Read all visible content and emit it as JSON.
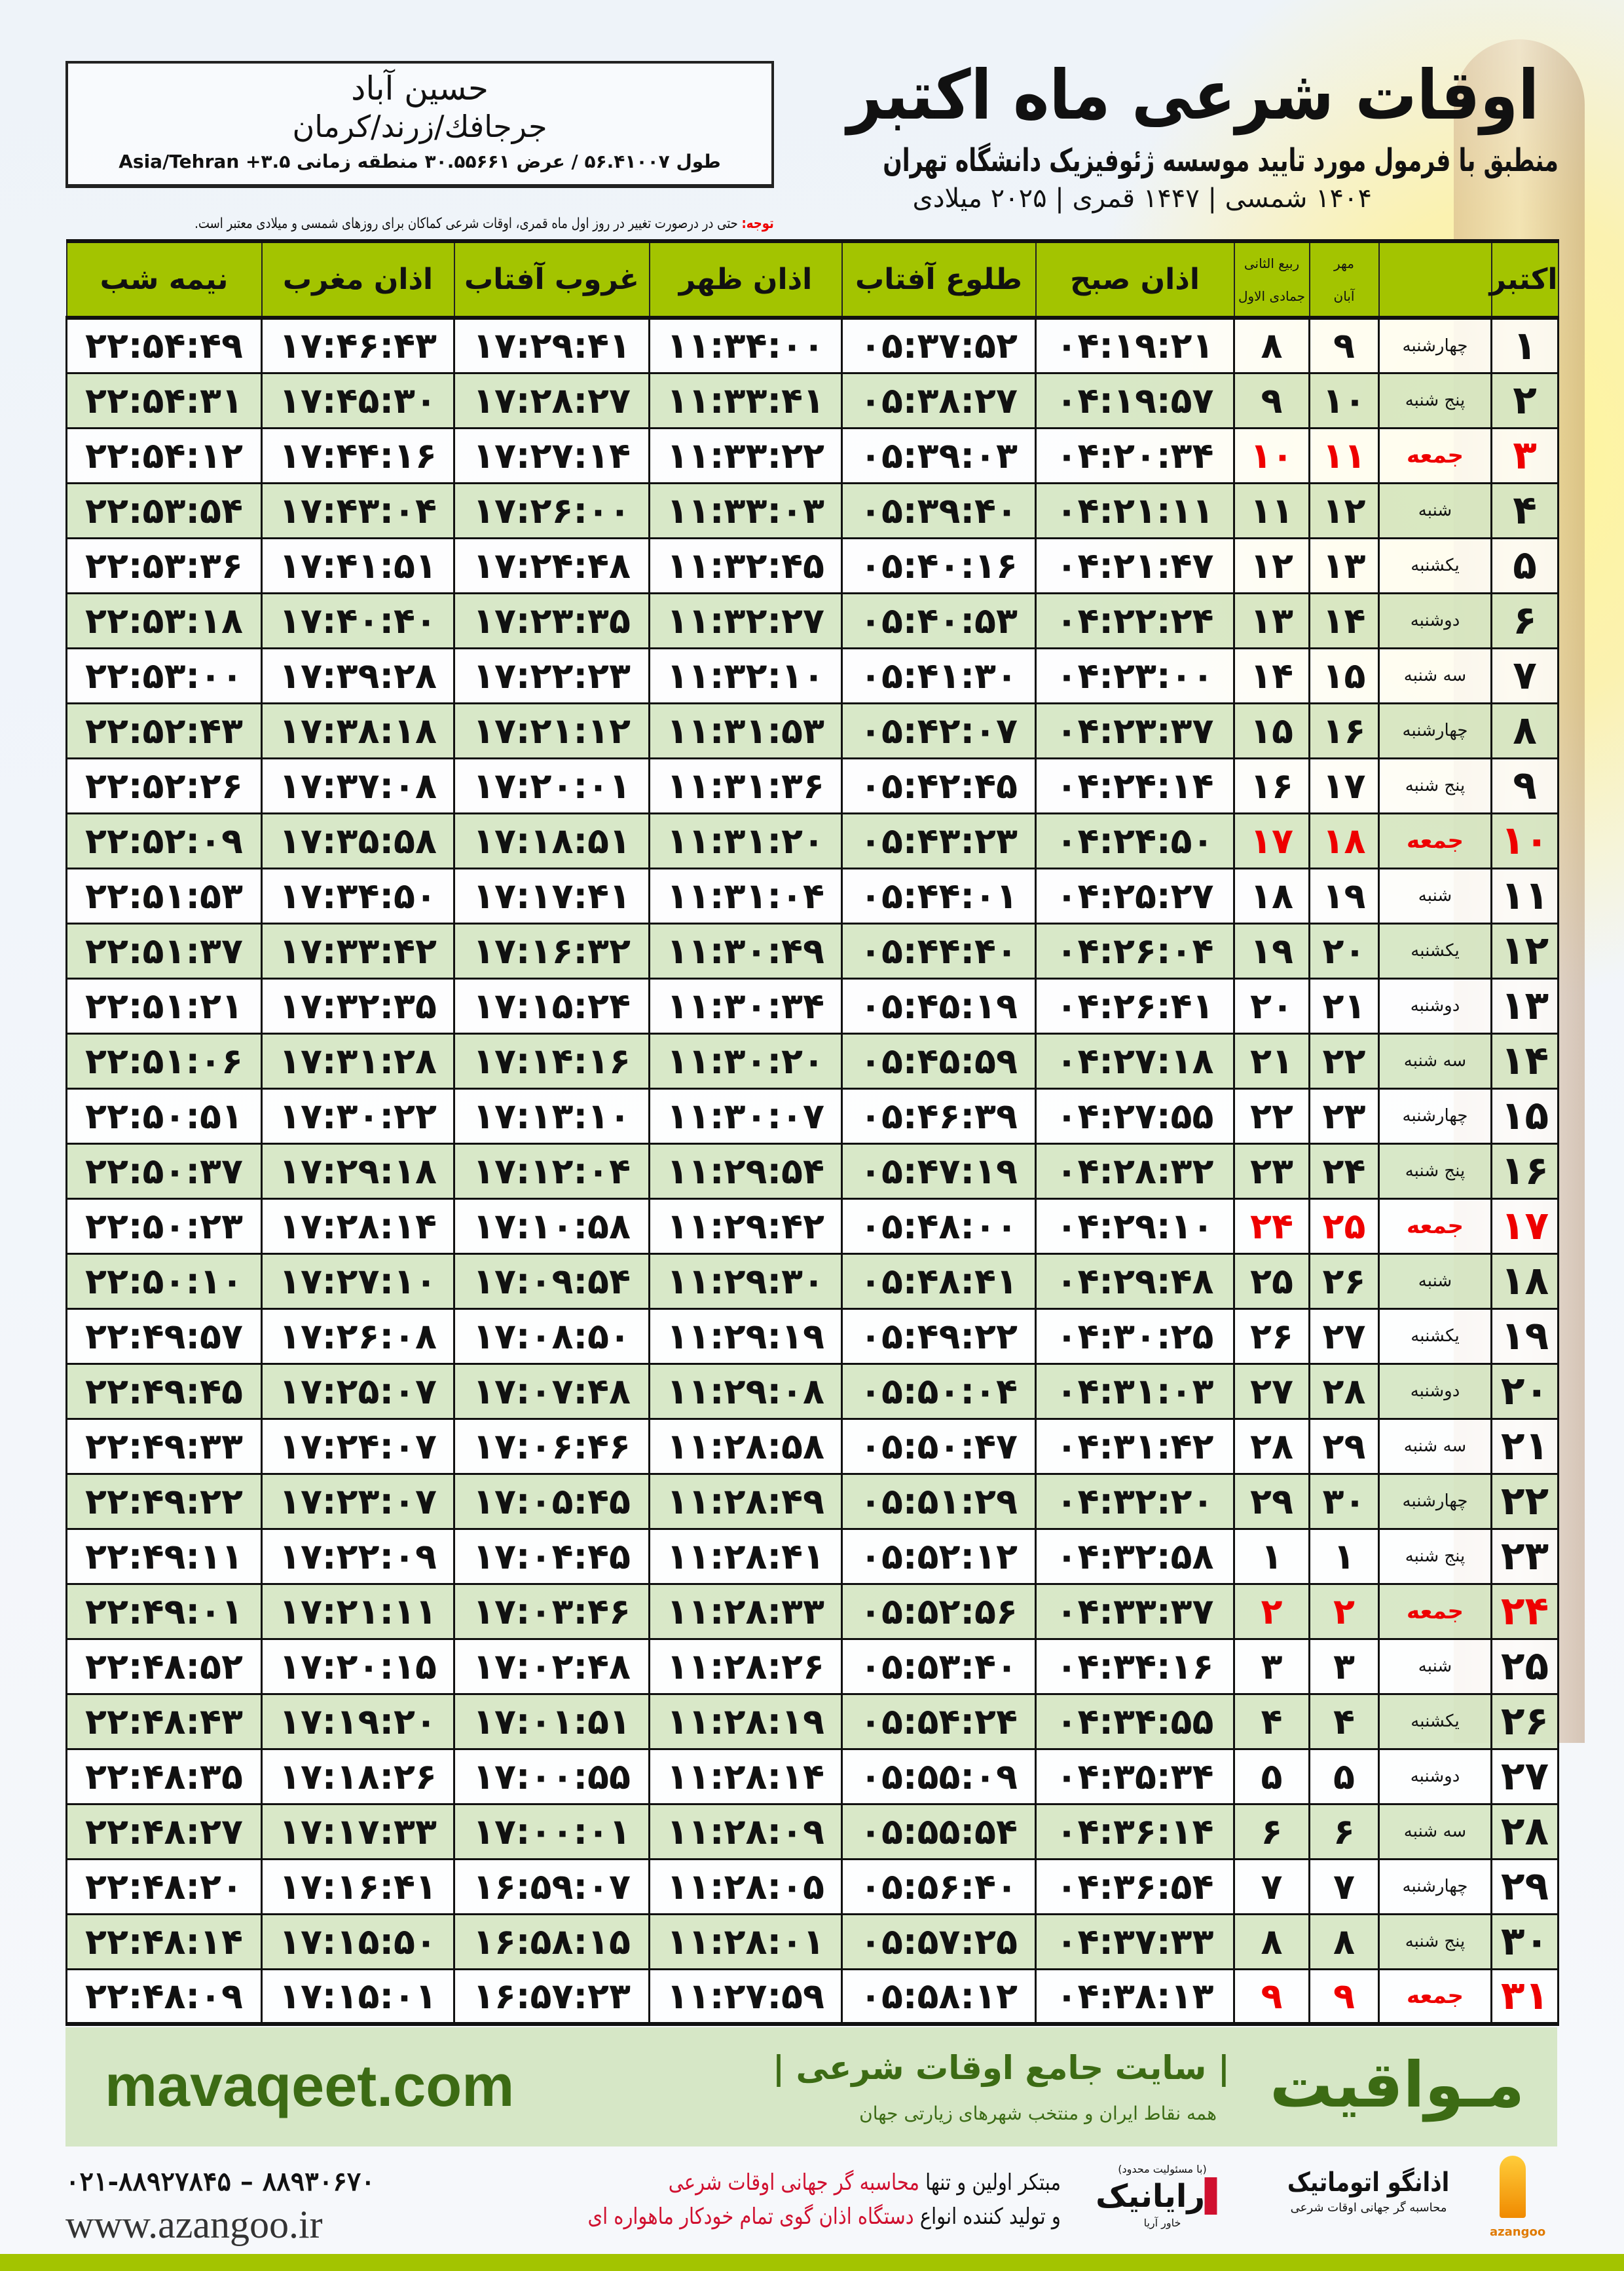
{
  "header": {
    "title": "اوقات شرعی ماه اکتبر",
    "subtitle": "منطبق با فرمول مورد تایید موسسه ژئوفیزیک دانشگاه تهران",
    "years": "۱۴۰۴ شمسی | ۱۴۴۷ قمری | ۲۰۲۵ میلادی"
  },
  "location": {
    "name": "حسین آباد",
    "region": "جرجافك/زرند/کرمان",
    "coords": "طول ۵۶.۴۱۰۰۷ / عرض ۳۰.۵۵۶۶۱ منطقه زمانی ۳.۵+ Asia/Tehran"
  },
  "note": {
    "label": "توجه:",
    "text": " حتی در درصورت تغییر در روز اول ماه قمری، اوقات شرعی کماکان برای روزهای شمسی و میلادی معتبر است."
  },
  "columns": {
    "day": "اکتبر",
    "solar_top": "مهر",
    "solar_bottom": "آبان",
    "lunar_top": "ربیع الثانی",
    "lunar_bottom": "جمادی الاول",
    "fajr": "اذان صبح",
    "sunrise": "طلوع آفتاب",
    "dhuhr": "اذان ظهر",
    "sunset": "غروب آفتاب",
    "maghrib": "اذان مغرب",
    "midnight": "نیمه شب"
  },
  "rows": [
    [
      "۱",
      "چهارشنبه",
      "۹",
      "۸",
      "۰۴:۱۹:۲۱",
      "۰۵:۳۷:۵۲",
      "۱۱:۳۴:۰۰",
      "۱۷:۲۹:۴۱",
      "۱۷:۴۶:۴۳",
      "۲۲:۵۴:۴۹"
    ],
    [
      "۲",
      "پنج شنبه",
      "۱۰",
      "۹",
      "۰۴:۱۹:۵۷",
      "۰۵:۳۸:۲۷",
      "۱۱:۳۳:۴۱",
      "۱۷:۲۸:۲۷",
      "۱۷:۴۵:۳۰",
      "۲۲:۵۴:۳۱"
    ],
    [
      "۳",
      "جمعه",
      "۱۱",
      "۱۰",
      "۰۴:۲۰:۳۴",
      "۰۵:۳۹:۰۳",
      "۱۱:۳۳:۲۲",
      "۱۷:۲۷:۱۴",
      "۱۷:۴۴:۱۶",
      "۲۲:۵۴:۱۲"
    ],
    [
      "۴",
      "شنبه",
      "۱۲",
      "۱۱",
      "۰۴:۲۱:۱۱",
      "۰۵:۳۹:۴۰",
      "۱۱:۳۳:۰۳",
      "۱۷:۲۶:۰۰",
      "۱۷:۴۳:۰۴",
      "۲۲:۵۳:۵۴"
    ],
    [
      "۵",
      "یکشنبه",
      "۱۳",
      "۱۲",
      "۰۴:۲۱:۴۷",
      "۰۵:۴۰:۱۶",
      "۱۱:۳۲:۴۵",
      "۱۷:۲۴:۴۸",
      "۱۷:۴۱:۵۱",
      "۲۲:۵۳:۳۶"
    ],
    [
      "۶",
      "دوشنبه",
      "۱۴",
      "۱۳",
      "۰۴:۲۲:۲۴",
      "۰۵:۴۰:۵۳",
      "۱۱:۳۲:۲۷",
      "۱۷:۲۳:۳۵",
      "۱۷:۴۰:۴۰",
      "۲۲:۵۳:۱۸"
    ],
    [
      "۷",
      "سه شنبه",
      "۱۵",
      "۱۴",
      "۰۴:۲۳:۰۰",
      "۰۵:۴۱:۳۰",
      "۱۱:۳۲:۱۰",
      "۱۷:۲۲:۲۳",
      "۱۷:۳۹:۲۸",
      "۲۲:۵۳:۰۰"
    ],
    [
      "۸",
      "چهارشنبه",
      "۱۶",
      "۱۵",
      "۰۴:۲۳:۳۷",
      "۰۵:۴۲:۰۷",
      "۱۱:۳۱:۵۳",
      "۱۷:۲۱:۱۲",
      "۱۷:۳۸:۱۸",
      "۲۲:۵۲:۴۳"
    ],
    [
      "۹",
      "پنج شنبه",
      "۱۷",
      "۱۶",
      "۰۴:۲۴:۱۴",
      "۰۵:۴۲:۴۵",
      "۱۱:۳۱:۳۶",
      "۱۷:۲۰:۰۱",
      "۱۷:۳۷:۰۸",
      "۲۲:۵۲:۲۶"
    ],
    [
      "۱۰",
      "جمعه",
      "۱۸",
      "۱۷",
      "۰۴:۲۴:۵۰",
      "۰۵:۴۳:۲۳",
      "۱۱:۳۱:۲۰",
      "۱۷:۱۸:۵۱",
      "۱۷:۳۵:۵۸",
      "۲۲:۵۲:۰۹"
    ],
    [
      "۱۱",
      "شنبه",
      "۱۹",
      "۱۸",
      "۰۴:۲۵:۲۷",
      "۰۵:۴۴:۰۱",
      "۱۱:۳۱:۰۴",
      "۱۷:۱۷:۴۱",
      "۱۷:۳۴:۵۰",
      "۲۲:۵۱:۵۳"
    ],
    [
      "۱۲",
      "یکشنبه",
      "۲۰",
      "۱۹",
      "۰۴:۲۶:۰۴",
      "۰۵:۴۴:۴۰",
      "۱۱:۳۰:۴۹",
      "۱۷:۱۶:۳۲",
      "۱۷:۳۳:۴۲",
      "۲۲:۵۱:۳۷"
    ],
    [
      "۱۳",
      "دوشنبه",
      "۲۱",
      "۲۰",
      "۰۴:۲۶:۴۱",
      "۰۵:۴۵:۱۹",
      "۱۱:۳۰:۳۴",
      "۱۷:۱۵:۲۴",
      "۱۷:۳۲:۳۵",
      "۲۲:۵۱:۲۱"
    ],
    [
      "۱۴",
      "سه شنبه",
      "۲۲",
      "۲۱",
      "۰۴:۲۷:۱۸",
      "۰۵:۴۵:۵۹",
      "۱۱:۳۰:۲۰",
      "۱۷:۱۴:۱۶",
      "۱۷:۳۱:۲۸",
      "۲۲:۵۱:۰۶"
    ],
    [
      "۱۵",
      "چهارشنبه",
      "۲۳",
      "۲۲",
      "۰۴:۲۷:۵۵",
      "۰۵:۴۶:۳۹",
      "۱۱:۳۰:۰۷",
      "۱۷:۱۳:۱۰",
      "۱۷:۳۰:۲۲",
      "۲۲:۵۰:۵۱"
    ],
    [
      "۱۶",
      "پنج شنبه",
      "۲۴",
      "۲۳",
      "۰۴:۲۸:۳۲",
      "۰۵:۴۷:۱۹",
      "۱۱:۲۹:۵۴",
      "۱۷:۱۲:۰۴",
      "۱۷:۲۹:۱۸",
      "۲۲:۵۰:۳۷"
    ],
    [
      "۱۷",
      "جمعه",
      "۲۵",
      "۲۴",
      "۰۴:۲۹:۱۰",
      "۰۵:۴۸:۰۰",
      "۱۱:۲۹:۴۲",
      "۱۷:۱۰:۵۸",
      "۱۷:۲۸:۱۴",
      "۲۲:۵۰:۲۳"
    ],
    [
      "۱۸",
      "شنبه",
      "۲۶",
      "۲۵",
      "۰۴:۲۹:۴۸",
      "۰۵:۴۸:۴۱",
      "۱۱:۲۹:۳۰",
      "۱۷:۰۹:۵۴",
      "۱۷:۲۷:۱۰",
      "۲۲:۵۰:۱۰"
    ],
    [
      "۱۹",
      "یکشنبه",
      "۲۷",
      "۲۶",
      "۰۴:۳۰:۲۵",
      "۰۵:۴۹:۲۲",
      "۱۱:۲۹:۱۹",
      "۱۷:۰۸:۵۰",
      "۱۷:۲۶:۰۸",
      "۲۲:۴۹:۵۷"
    ],
    [
      "۲۰",
      "دوشنبه",
      "۲۸",
      "۲۷",
      "۰۴:۳۱:۰۳",
      "۰۵:۵۰:۰۴",
      "۱۱:۲۹:۰۸",
      "۱۷:۰۷:۴۸",
      "۱۷:۲۵:۰۷",
      "۲۲:۴۹:۴۵"
    ],
    [
      "۲۱",
      "سه شنبه",
      "۲۹",
      "۲۸",
      "۰۴:۳۱:۴۲",
      "۰۵:۵۰:۴۷",
      "۱۱:۲۸:۵۸",
      "۱۷:۰۶:۴۶",
      "۱۷:۲۴:۰۷",
      "۲۲:۴۹:۳۳"
    ],
    [
      "۲۲",
      "چهارشنبه",
      "۳۰",
      "۲۹",
      "۰۴:۳۲:۲۰",
      "۰۵:۵۱:۲۹",
      "۱۱:۲۸:۴۹",
      "۱۷:۰۵:۴۵",
      "۱۷:۲۳:۰۷",
      "۲۲:۴۹:۲۲"
    ],
    [
      "۲۳",
      "پنج شنبه",
      "۱",
      "۱",
      "۰۴:۳۲:۵۸",
      "۰۵:۵۲:۱۲",
      "۱۱:۲۸:۴۱",
      "۱۷:۰۴:۴۵",
      "۱۷:۲۲:۰۹",
      "۲۲:۴۹:۱۱"
    ],
    [
      "۲۴",
      "جمعه",
      "۲",
      "۲",
      "۰۴:۳۳:۳۷",
      "۰۵:۵۲:۵۶",
      "۱۱:۲۸:۳۳",
      "۱۷:۰۳:۴۶",
      "۱۷:۲۱:۱۱",
      "۲۲:۴۹:۰۱"
    ],
    [
      "۲۵",
      "شنبه",
      "۳",
      "۳",
      "۰۴:۳۴:۱۶",
      "۰۵:۵۳:۴۰",
      "۱۱:۲۸:۲۶",
      "۱۷:۰۲:۴۸",
      "۱۷:۲۰:۱۵",
      "۲۲:۴۸:۵۲"
    ],
    [
      "۲۶",
      "یکشنبه",
      "۴",
      "۴",
      "۰۴:۳۴:۵۵",
      "۰۵:۵۴:۲۴",
      "۱۱:۲۸:۱۹",
      "۱۷:۰۱:۵۱",
      "۱۷:۱۹:۲۰",
      "۲۲:۴۸:۴۳"
    ],
    [
      "۲۷",
      "دوشنبه",
      "۵",
      "۵",
      "۰۴:۳۵:۳۴",
      "۰۵:۵۵:۰۹",
      "۱۱:۲۸:۱۴",
      "۱۷:۰۰:۵۵",
      "۱۷:۱۸:۲۶",
      "۲۲:۴۸:۳۵"
    ],
    [
      "۲۸",
      "سه شنبه",
      "۶",
      "۶",
      "۰۴:۳۶:۱۴",
      "۰۵:۵۵:۵۴",
      "۱۱:۲۸:۰۹",
      "۱۷:۰۰:۰۱",
      "۱۷:۱۷:۳۳",
      "۲۲:۴۸:۲۷"
    ],
    [
      "۲۹",
      "چهارشنبه",
      "۷",
      "۷",
      "۰۴:۳۶:۵۴",
      "۰۵:۵۶:۴۰",
      "۱۱:۲۸:۰۵",
      "۱۶:۵۹:۰۷",
      "۱۷:۱۶:۴۱",
      "۲۲:۴۸:۲۰"
    ],
    [
      "۳۰",
      "پنج شنبه",
      "۸",
      "۸",
      "۰۴:۳۷:۳۳",
      "۰۵:۵۷:۲۵",
      "۱۱:۲۸:۰۱",
      "۱۶:۵۸:۱۵",
      "۱۷:۱۵:۵۰",
      "۲۲:۴۸:۱۴"
    ],
    [
      "۳۱",
      "جمعه",
      "۹",
      "۹",
      "۰۴:۳۸:۱۳",
      "۰۵:۵۸:۱۲",
      "۱۱:۲۷:۵۹",
      "۱۶:۵۷:۲۳",
      "۱۷:۱۵:۰۱",
      "۲۲:۴۸:۰۹"
    ]
  ],
  "holiday_weekday": "جمعه",
  "colors": {
    "header_green": "#a3c400",
    "row_green": "#d6e6c3",
    "holiday_red": "#e00000",
    "brand_green": "#3c6b14"
  },
  "footer": {
    "site": "mavaqeet.com",
    "brand": "مـواقیت",
    "slogan": "| سایت جامع اوقات شرعی |",
    "slogan2": "همه نقاط ایران و منتخب شهرهای زیارتی جهان",
    "phone": "۰۲۱-۸۸۹۲۷۸۴۵ – ۸۸۹۳۰۶۷۰",
    "web": "www.azangoo.ir",
    "promo1_a": "مبتکر اولین و تنها ",
    "promo1_b": "محاسبه گر جهانی اوقات شرعی",
    "promo2_a": "و تولید کننده انواع ",
    "promo2_b": "دستگاه اذان گوی تمام خودکار ماهواره ای",
    "logo_raya_note": "(با مسئولیت محدود)",
    "logo_raya": "رایانیک",
    "logo_raya_sub": "خاور آریا",
    "logo_azangoo": "اذانگو اتوماتیک",
    "logo_azangoo_sub": "محاسبه گر جهانی اوقات شرعی",
    "logo_azangoo_en": "azangoo"
  }
}
